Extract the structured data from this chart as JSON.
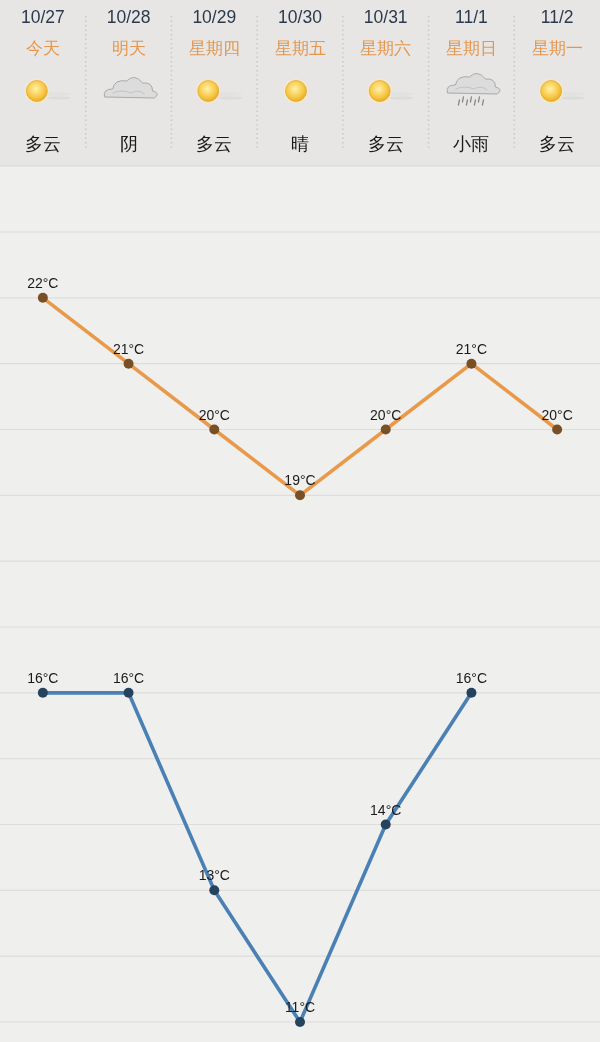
{
  "chart_data": {
    "type": "line",
    "categories": [
      "10/27",
      "10/28",
      "10/29",
      "10/30",
      "10/31",
      "11/1",
      "11/2"
    ],
    "series": [
      {
        "color": "#e8994a",
        "values": [
          22,
          21,
          20,
          19,
          20,
          21,
          20
        ],
        "value_labels": [
          "22°C",
          "21°C",
          "20°C",
          "19°C",
          "20°C",
          "21°C",
          "20°C"
        ]
      },
      {
        "color": "#4a80b4",
        "values": [
          16,
          16,
          13,
          11,
          14,
          16,
          null
        ],
        "value_labels": [
          "16°C",
          "16°C",
          "13°C",
          "11°C",
          "14°C",
          "16°C",
          null
        ]
      }
    ],
    "yticks": [
      {
        "value": 11,
        "label": null
      },
      {
        "value": 12,
        "label": null
      },
      {
        "value": 13,
        "label": null
      },
      {
        "value": 14,
        "label": null
      },
      {
        "value": 15,
        "label": null
      },
      {
        "value": 16,
        "label": null
      },
      {
        "value": 17,
        "label": null
      },
      {
        "value": 18,
        "label": null
      },
      {
        "value": 19,
        "label": null
      },
      {
        "value": 20,
        "label": null
      },
      {
        "value": 21,
        "label": null
      },
      {
        "value": 22,
        "label": null
      },
      {
        "value": 23,
        "label": null
      }
    ],
    "grid": "y",
    "tick_labels": "x",
    "marker": "circle",
    "line_style": "solid",
    "annotations": [
      "今天",
      "明天",
      "星期四",
      "星期五",
      "星期六",
      "星期日",
      "星期一",
      "多云",
      "阴",
      "多云",
      "晴",
      "多云",
      "小雨",
      "多云"
    ]
  }
}
